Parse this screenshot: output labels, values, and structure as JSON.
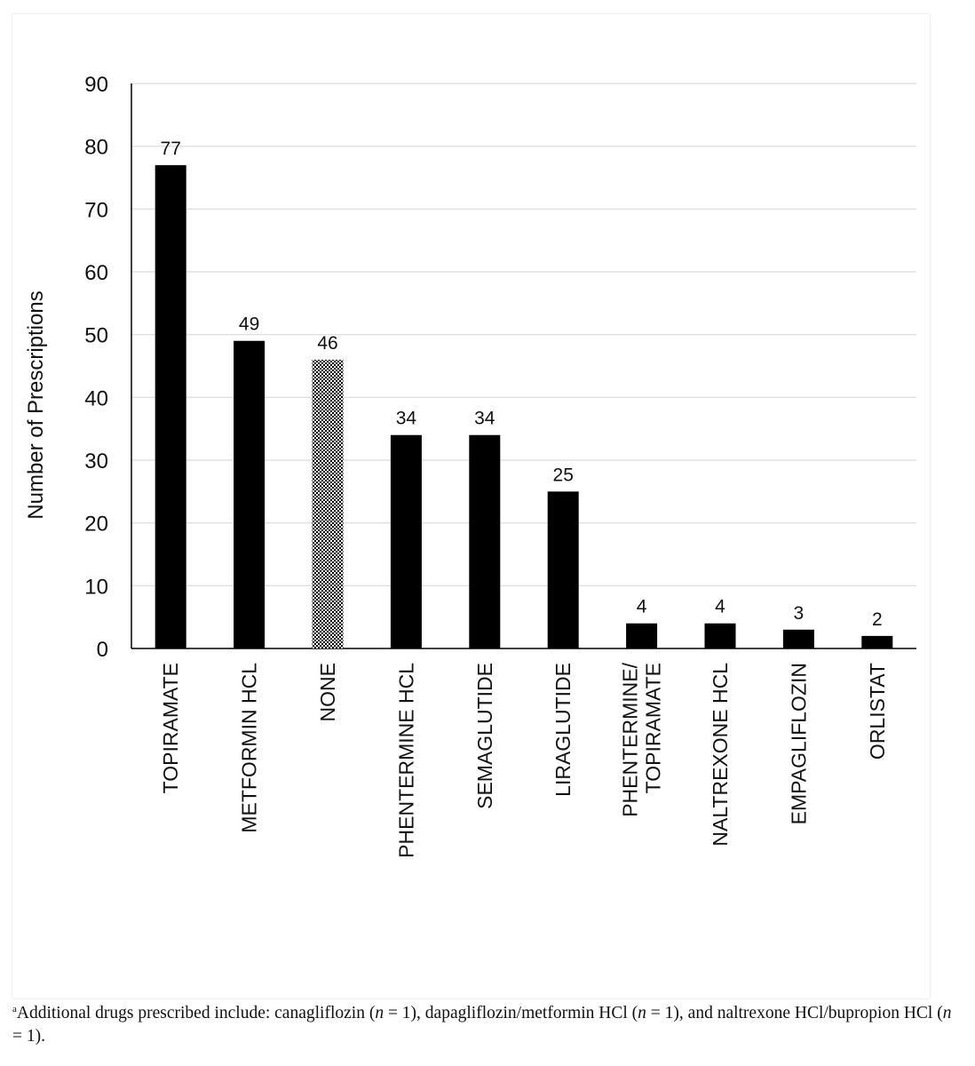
{
  "chart_data": {
    "type": "bar",
    "title": "",
    "xlabel": "",
    "ylabel": "Number of Prescriptions",
    "ylim": [
      0,
      90
    ],
    "yticks": [
      0,
      10,
      20,
      30,
      40,
      50,
      60,
      70,
      80,
      90
    ],
    "grid": true,
    "categories": [
      "TOPIRAMATE",
      "METFORMIN HCL",
      "NONE",
      "PHENTERMINE HCL",
      "SEMAGLUTIDE",
      "LIRAGLUTIDE",
      "PHENTERMINE/ TOPIRAMATE",
      "NALTREXONE HCL",
      "EMPAGLIFLOZIN",
      "ORLISTAT"
    ],
    "values": [
      77,
      49,
      46,
      34,
      34,
      25,
      4,
      4,
      3,
      2
    ],
    "category_label_lines": [
      [
        "TOPIRAMATE"
      ],
      [
        "METFORMIN HCL"
      ],
      [
        "NONE"
      ],
      [
        "PHENTERMINE HCL"
      ],
      [
        "SEMAGLUTIDE"
      ],
      [
        "LIRAGLUTIDE"
      ],
      [
        "PHENTERMINE/",
        "TOPIRAMATE"
      ],
      [
        "NALTREXONE HCL"
      ],
      [
        "EMPAGLIFLOZIN"
      ],
      [
        "ORLISTAT"
      ]
    ],
    "bar_fills": [
      "solid",
      "solid",
      "checkered",
      "solid",
      "solid",
      "solid",
      "solid",
      "solid",
      "solid",
      "solid"
    ],
    "colors": {
      "bar": "#000000",
      "grid": "#d9d9d9",
      "axis": "#000000",
      "text": "#111111"
    }
  },
  "footnote": {
    "marker": "a",
    "segments": [
      {
        "text": "Additional drugs prescribed include: canagliflozin (",
        "italic": false
      },
      {
        "text": "n",
        "italic": true
      },
      {
        "text": " = 1), dapagliflozin/metformin HCl (",
        "italic": false
      },
      {
        "text": "n",
        "italic": true
      },
      {
        "text": " = 1), and naltrexone HCl/bupropion HCl (",
        "italic": false
      },
      {
        "text": "n",
        "italic": true
      },
      {
        "text": " = 1).",
        "italic": false
      }
    ]
  }
}
